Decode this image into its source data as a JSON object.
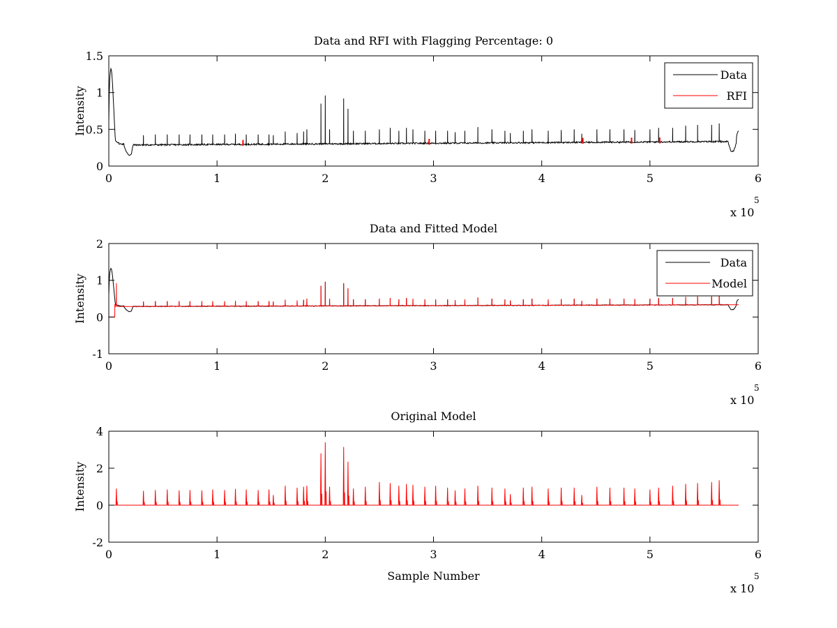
{
  "chart_data": [
    {
      "type": "line",
      "title": "Data and RFI with Flagging Percentage: 0",
      "xlabel": "",
      "ylabel": "Intensity",
      "xlim": [
        0,
        6
      ],
      "ylim": [
        0,
        1.5
      ],
      "xticks": [
        "0",
        "1",
        "2",
        "3",
        "4",
        "5",
        "6"
      ],
      "yticks": [
        "0",
        "0.5",
        "1",
        "1.5"
      ],
      "x_multiplier": "x 10",
      "x_exponent": "5",
      "legend": [
        "Data",
        "RFI"
      ],
      "legend_location": "top-right",
      "series": [
        {
          "name": "Data",
          "color": "#000000",
          "kind": "data"
        },
        {
          "name": "RFI",
          "color": "#ff0000",
          "kind": "rfi"
        }
      ]
    },
    {
      "type": "line",
      "title": "Data and Fitted Model",
      "xlabel": "",
      "ylabel": "Intensity",
      "xlim": [
        0,
        6
      ],
      "ylim": [
        -1,
        2
      ],
      "xticks": [
        "0",
        "1",
        "2",
        "3",
        "4",
        "5",
        "6"
      ],
      "yticks": [
        "-1",
        "0",
        "1",
        "2"
      ],
      "x_multiplier": "x 10",
      "x_exponent": "5",
      "legend": [
        "Data",
        "Model"
      ],
      "legend_location": "top-right",
      "series": [
        {
          "name": "Data",
          "color": "#000000",
          "kind": "data"
        },
        {
          "name": "Model",
          "color": "#ff0000",
          "kind": "model"
        }
      ]
    },
    {
      "type": "line",
      "title": "Original Model",
      "xlabel": "Sample Number",
      "ylabel": "Intensity",
      "xlim": [
        0,
        6
      ],
      "ylim": [
        -2,
        4
      ],
      "xticks": [
        "0",
        "1",
        "2",
        "3",
        "4",
        "5",
        "6"
      ],
      "yticks": [
        "-2",
        "0",
        "2",
        "4"
      ],
      "x_multiplier": "x 10",
      "x_exponent": "5",
      "legend": [],
      "series": [
        {
          "name": "Original Model",
          "color": "#ff0000",
          "kind": "original"
        }
      ]
    }
  ],
  "signal": {
    "x_end": 5.82,
    "baseline_start": 0.285,
    "baseline_end": 0.335,
    "spikes": [
      [
        0.32,
        0.42
      ],
      [
        0.43,
        0.43
      ],
      [
        0.54,
        0.43
      ],
      [
        0.65,
        0.43
      ],
      [
        0.75,
        0.43
      ],
      [
        0.86,
        0.43
      ],
      [
        0.96,
        0.43
      ],
      [
        1.07,
        0.43
      ],
      [
        1.17,
        0.44
      ],
      [
        1.27,
        0.43
      ],
      [
        1.38,
        0.43
      ],
      [
        1.48,
        0.43
      ],
      [
        1.52,
        0.42
      ],
      [
        1.63,
        0.47
      ],
      [
        1.74,
        0.45
      ],
      [
        1.8,
        0.47
      ],
      [
        1.83,
        0.5
      ],
      [
        1.96,
        0.85
      ],
      [
        2.0,
        0.96
      ],
      [
        2.04,
        0.5
      ],
      [
        2.17,
        0.92
      ],
      [
        2.21,
        0.78
      ],
      [
        2.26,
        0.48
      ],
      [
        2.37,
        0.48
      ],
      [
        2.5,
        0.5
      ],
      [
        2.6,
        0.52
      ],
      [
        2.68,
        0.48
      ],
      [
        2.75,
        0.52
      ],
      [
        2.81,
        0.5
      ],
      [
        2.92,
        0.48
      ],
      [
        3.02,
        0.48
      ],
      [
        3.13,
        0.48
      ],
      [
        3.2,
        0.46
      ],
      [
        3.29,
        0.48
      ],
      [
        3.41,
        0.53
      ],
      [
        3.54,
        0.5
      ],
      [
        3.66,
        0.48
      ],
      [
        3.71,
        0.45
      ],
      [
        3.83,
        0.48
      ],
      [
        3.91,
        0.5
      ],
      [
        4.06,
        0.48
      ],
      [
        4.18,
        0.49
      ],
      [
        4.3,
        0.5
      ],
      [
        4.37,
        0.44
      ],
      [
        4.51,
        0.5
      ],
      [
        4.63,
        0.5
      ],
      [
        4.76,
        0.5
      ],
      [
        4.86,
        0.49
      ],
      [
        5.0,
        0.5
      ],
      [
        5.08,
        0.52
      ],
      [
        5.21,
        0.52
      ],
      [
        5.33,
        0.55
      ],
      [
        5.44,
        0.56
      ],
      [
        5.57,
        0.56
      ],
      [
        5.64,
        0.58
      ]
    ],
    "rfi_marks": [
      1.24,
      2.96,
      4.38,
      4.83,
      5.09
    ],
    "model_spikes": [
      [
        0.07,
        0.9
      ],
      [
        0.32,
        0.78
      ],
      [
        0.43,
        0.82
      ],
      [
        0.54,
        0.85
      ],
      [
        0.65,
        0.8
      ],
      [
        0.75,
        0.82
      ],
      [
        0.86,
        0.8
      ],
      [
        0.96,
        0.85
      ],
      [
        1.07,
        0.82
      ],
      [
        1.17,
        0.88
      ],
      [
        1.27,
        0.85
      ],
      [
        1.38,
        0.82
      ],
      [
        1.48,
        0.85
      ],
      [
        1.52,
        0.55
      ],
      [
        1.63,
        1.05
      ],
      [
        1.74,
        0.95
      ],
      [
        1.8,
        1.0
      ],
      [
        1.83,
        1.05
      ],
      [
        1.96,
        2.8
      ],
      [
        2.0,
        3.4
      ],
      [
        2.04,
        1.0
      ],
      [
        2.17,
        3.15
      ],
      [
        2.21,
        2.35
      ],
      [
        2.26,
        0.9
      ],
      [
        2.37,
        1.0
      ],
      [
        2.5,
        1.25
      ],
      [
        2.6,
        1.2
      ],
      [
        2.68,
        1.05
      ],
      [
        2.75,
        1.15
      ],
      [
        2.81,
        1.1
      ],
      [
        2.92,
        1.0
      ],
      [
        3.02,
        1.05
      ],
      [
        3.13,
        0.95
      ],
      [
        3.2,
        0.8
      ],
      [
        3.29,
        0.9
      ],
      [
        3.41,
        1.05
      ],
      [
        3.54,
        0.95
      ],
      [
        3.66,
        0.9
      ],
      [
        3.71,
        0.6
      ],
      [
        3.83,
        0.95
      ],
      [
        3.91,
        1.0
      ],
      [
        4.06,
        0.9
      ],
      [
        4.18,
        0.95
      ],
      [
        4.3,
        0.95
      ],
      [
        4.37,
        0.55
      ],
      [
        4.51,
        1.0
      ],
      [
        4.63,
        0.95
      ],
      [
        4.76,
        0.95
      ],
      [
        4.86,
        0.9
      ],
      [
        5.0,
        0.85
      ],
      [
        5.08,
        0.95
      ],
      [
        5.21,
        1.05
      ],
      [
        5.33,
        1.15
      ],
      [
        5.44,
        1.2
      ],
      [
        5.57,
        1.25
      ],
      [
        5.64,
        1.35
      ]
    ]
  }
}
